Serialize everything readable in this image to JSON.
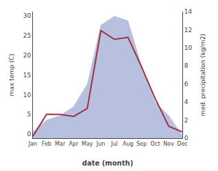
{
  "chart_data": {
    "type": "line",
    "categories": [
      "Jan",
      "Feb",
      "Mar",
      "Apr",
      "May",
      "Jun",
      "Jul",
      "Aug",
      "Sep",
      "Oct",
      "Nov",
      "Dec"
    ],
    "xlabel": "date (month)",
    "ylabel": "max temp (C)",
    "y2label": "med. precipitation (kg/m2)",
    "series": [
      {
        "type": "area",
        "axis": "y2",
        "color": "#b8c0e0",
        "values": [
          0.7,
          2.0,
          2.5,
          3.5,
          6.0,
          12.5,
          13.5,
          13.0,
          8.0,
          4.0,
          2.5,
          0.3
        ]
      },
      {
        "type": "line",
        "color": "#a03040",
        "values": [
          -0.5,
          5.0,
          5.0,
          4.5,
          6.5,
          26.2,
          24.0,
          24.5,
          17.0,
          9.0,
          2.0,
          0.6
        ]
      }
    ],
    "ylim": [
      -1,
      31
    ],
    "yticks": [
      0,
      5,
      10,
      15,
      20,
      25,
      30
    ],
    "y2lim": [
      0,
      14
    ],
    "y2ticks": [
      0,
      2,
      4,
      6,
      8,
      10,
      12,
      14
    ],
    "grid": false
  }
}
